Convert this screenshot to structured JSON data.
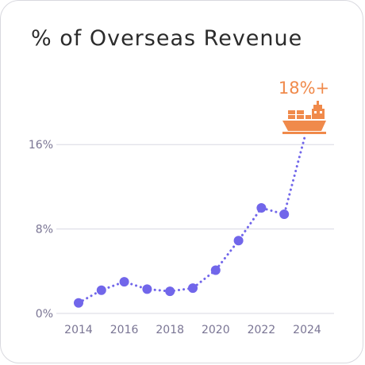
{
  "chart_data": {
    "type": "line",
    "title": "% of Overseas Revenue",
    "xlabel": "",
    "ylabel": "",
    "x": [
      2014,
      2015,
      2016,
      2017,
      2018,
      2019,
      2020,
      2021,
      2022,
      2023,
      2024
    ],
    "values": [
      1.0,
      2.2,
      3.0,
      2.3,
      2.1,
      2.4,
      4.1,
      6.9,
      10.0,
      9.4,
      18.0
    ],
    "xticks": [
      "2014",
      "2016",
      "2018",
      "2020",
      "2022",
      "2024"
    ],
    "yticks": [
      "0%",
      "8%",
      "16%"
    ],
    "ylim": [
      0,
      18
    ],
    "grid": "horizontal",
    "line_style": "dotted",
    "callout": {
      "label": "18%+",
      "icon": "cargo-ship-icon"
    },
    "colors": {
      "series": "#7166ea",
      "accent": "#f08a4b",
      "grid": "#d8d8e2"
    }
  }
}
